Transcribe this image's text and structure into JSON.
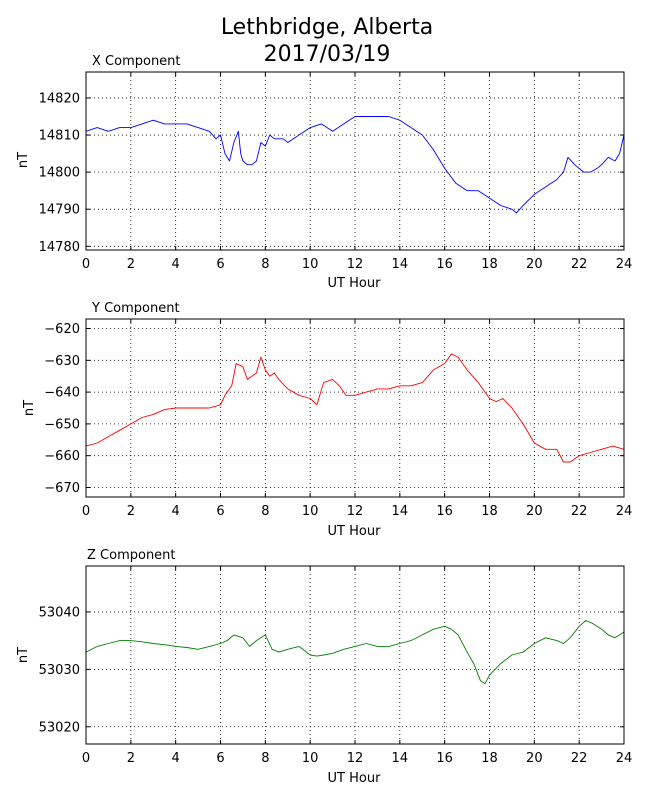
{
  "figure": {
    "title_line1": "Lethbridge, Alberta",
    "title_line2": "2017/03/19"
  },
  "chart_data": [
    {
      "type": "line",
      "title": "X Component",
      "xlabel": "UT Hour",
      "ylabel": "nT",
      "xlim": [
        0,
        24
      ],
      "ylim": [
        14779,
        14827
      ],
      "xticks": [
        0,
        2,
        4,
        6,
        8,
        10,
        12,
        14,
        16,
        18,
        20,
        22,
        24
      ],
      "yticks": [
        14780,
        14790,
        14800,
        14810,
        14820
      ],
      "grid": true,
      "color": "#0000ff",
      "x": [
        0,
        0.5,
        1,
        1.5,
        2,
        2.5,
        3,
        3.5,
        4,
        4.5,
        5,
        5.5,
        5.8,
        6,
        6.2,
        6.4,
        6.6,
        6.8,
        6.9,
        7,
        7.2,
        7.4,
        7.6,
        7.8,
        8,
        8.2,
        8.4,
        8.6,
        8.8,
        9,
        9.5,
        10,
        10.5,
        11,
        11.5,
        12,
        12.5,
        13,
        13.5,
        14,
        14.5,
        15,
        15.5,
        16,
        16.5,
        17,
        17.5,
        18,
        18.5,
        19,
        19.2,
        19.5,
        20,
        20.5,
        21,
        21.3,
        21.5,
        21.8,
        22,
        22.2,
        22.5,
        22.8,
        23,
        23.3,
        23.6,
        23.8,
        24
      ],
      "y": [
        14811,
        14812,
        14811,
        14812,
        14812,
        14813,
        14814,
        14813,
        14813,
        14813,
        14812,
        14811,
        14809,
        14810,
        14805,
        14803,
        14808,
        14811,
        14805,
        14803,
        14802,
        14802,
        14803,
        14808,
        14807,
        14810,
        14809,
        14809,
        14809,
        14808,
        14810,
        14812,
        14813,
        14811,
        14813,
        14815,
        14815,
        14815,
        14815,
        14814,
        14812,
        14810,
        14806,
        14801,
        14797,
        14795,
        14795,
        14793,
        14791,
        14790,
        14789,
        14791,
        14794,
        14796,
        14798,
        14800,
        14804,
        14802,
        14801,
        14800,
        14800,
        14801,
        14802,
        14804,
        14803,
        14805,
        14810
      ]
    },
    {
      "type": "line",
      "title": "Y Component",
      "xlabel": "UT Hour",
      "ylabel": "nT",
      "xlim": [
        0,
        24
      ],
      "ylim": [
        -673,
        -617
      ],
      "xticks": [
        0,
        2,
        4,
        6,
        8,
        10,
        12,
        14,
        16,
        18,
        20,
        22,
        24
      ],
      "yticks": [
        -620,
        -630,
        -640,
        -650,
        -660,
        -670
      ],
      "grid": true,
      "color": "#ff0000",
      "x": [
        0,
        0.5,
        1,
        1.5,
        2,
        2.5,
        3,
        3.5,
        4,
        4.5,
        5,
        5.5,
        6,
        6.2,
        6.5,
        6.7,
        7,
        7.2,
        7.4,
        7.6,
        7.8,
        8,
        8.2,
        8.4,
        8.6,
        9,
        9.5,
        10,
        10.3,
        10.6,
        11,
        11.3,
        11.6,
        12,
        12.5,
        13,
        13.5,
        14,
        14.5,
        15,
        15.5,
        16,
        16.3,
        16.6,
        17,
        17.5,
        18,
        18.3,
        18.6,
        19,
        19.5,
        20,
        20.5,
        21,
        21.3,
        21.6,
        22,
        22.5,
        23,
        23.5,
        24
      ],
      "y": [
        -657,
        -656,
        -654,
        -652,
        -650,
        -648,
        -647,
        -645.5,
        -645,
        -645,
        -645,
        -645,
        -644,
        -641,
        -638,
        -631,
        -632,
        -636,
        -635,
        -634,
        -629,
        -633,
        -635,
        -634,
        -636,
        -639,
        -641,
        -642,
        -644,
        -637,
        -636,
        -638,
        -641,
        -641,
        -640,
        -639,
        -639,
        -638,
        -638,
        -637,
        -633,
        -631,
        -628,
        -629,
        -633,
        -637,
        -642,
        -643,
        -642,
        -645,
        -650,
        -656,
        -658,
        -658,
        -662,
        -662,
        -660,
        -659,
        -658,
        -657,
        -658
      ]
    },
    {
      "type": "line",
      "title": "Z Component",
      "xlabel": "UT Hour",
      "ylabel": "nT",
      "xlim": [
        0,
        24
      ],
      "ylim": [
        53017,
        53048
      ],
      "xticks": [
        0,
        2,
        4,
        6,
        8,
        10,
        12,
        14,
        16,
        18,
        20,
        22,
        24
      ],
      "yticks": [
        53020,
        53030,
        53040
      ],
      "grid": true,
      "color": "#008000",
      "x": [
        0,
        0.5,
        1,
        1.5,
        2,
        2.5,
        3,
        3.5,
        4,
        4.5,
        5,
        5.5,
        6,
        6.3,
        6.6,
        7,
        7.3,
        7.6,
        8,
        8.3,
        8.6,
        9,
        9.5,
        10,
        10.3,
        10.6,
        11,
        11.5,
        12,
        12.5,
        13,
        13.5,
        14,
        14.5,
        15,
        15.5,
        16,
        16.3,
        16.6,
        17,
        17.3,
        17.6,
        17.8,
        18,
        18.5,
        19,
        19.5,
        20,
        20.5,
        21,
        21.3,
        21.6,
        22,
        22.3,
        22.6,
        23,
        23.3,
        23.6,
        24
      ],
      "y": [
        53033,
        53034,
        53034.5,
        53035,
        53035,
        53034.8,
        53034.5,
        53034.3,
        53034,
        53033.8,
        53033.5,
        53034,
        53034.5,
        53035,
        53036,
        53035.5,
        53034,
        53035,
        53036,
        53033.5,
        53033,
        53033.5,
        53034,
        53032.5,
        53032.3,
        53032.5,
        53032.8,
        53033.5,
        53034,
        53034.5,
        53034,
        53034,
        53034.5,
        53035,
        53036,
        53037,
        53037.5,
        53037,
        53036,
        53033,
        53031,
        53028,
        53027.5,
        53029,
        53031,
        53032.5,
        53033,
        53034.5,
        53035.5,
        53035,
        53034.5,
        53035.5,
        53037.5,
        53038.5,
        53038,
        53037,
        53036,
        53035.5,
        53036.5
      ]
    }
  ]
}
